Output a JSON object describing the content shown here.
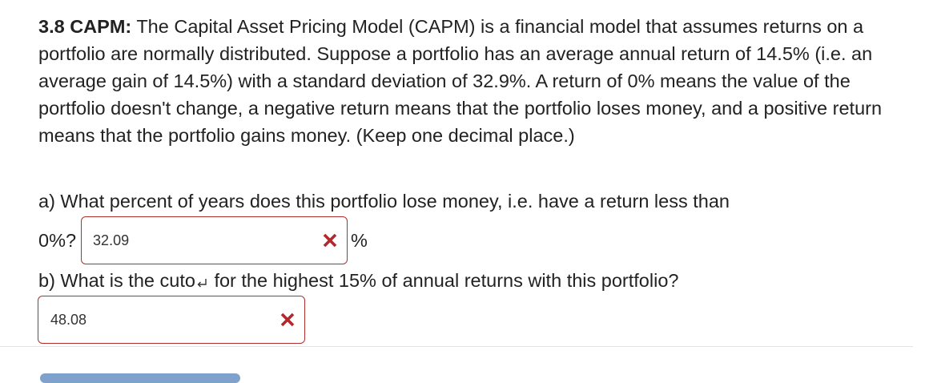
{
  "problem": {
    "title": "3.8 CAPM:",
    "body": "The Capital Asset Pricing Model (CAPM) is a financial model that assumes returns on a portfolio are normally distributed. Suppose a portfolio has an average annual return of 14.5% (i.e. an average gain of 14.5%) with a standard deviation of 32.9%. A return of 0% means the value of the portfolio doesn't change, a negative return means that the portfolio loses money, and a positive return means that the portfolio gains money. (Keep one decimal place.)"
  },
  "part_a": {
    "question": "a) What percent of years does this portfolio lose money, i.e. have a return less than",
    "question_end": "0%?",
    "answer": "32.09",
    "unit": "%",
    "status_icon": "wrong-x-icon",
    "status_color": "#b3282d"
  },
  "part_b": {
    "question_start": "b) What is the cuto",
    "question_icon": "return-arrow-icon",
    "question_end": "for the highest 15% of annual returns with this portfolio?",
    "answer": "48.08",
    "status_icon": "wrong-x-icon",
    "status_color": "#b3282d"
  },
  "colors": {
    "box_border": "#b03030",
    "text": "#222222",
    "button": "#7fa2cc"
  }
}
